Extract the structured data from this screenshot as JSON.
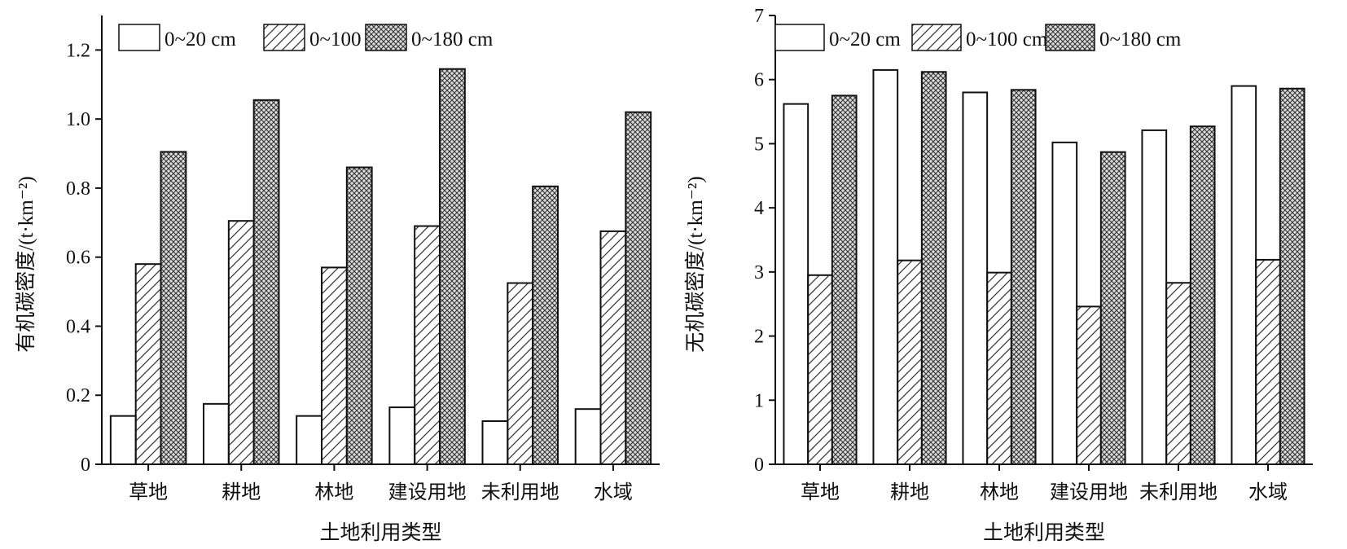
{
  "chart_data": [
    {
      "type": "bar",
      "title": "",
      "xlabel": "土地利用类型",
      "ylabel": "有机碳密度/(t·km⁻²)",
      "ylim": [
        0,
        1.3
      ],
      "yticks": [
        0,
        0.2,
        0.4,
        0.6,
        0.8,
        1.0,
        1.2
      ],
      "ytick_labels": [
        "0",
        "0.2",
        "0.4",
        "0.6",
        "0.8",
        "1.0",
        "1.2"
      ],
      "categories": [
        "草地",
        "耕地",
        "林地",
        "建设用地",
        "未利用地",
        "水域"
      ],
      "legend_position": "top",
      "series": [
        {
          "name": "0~20 cm",
          "pattern": "plain",
          "values": [
            0.14,
            0.175,
            0.14,
            0.165,
            0.125,
            0.16
          ]
        },
        {
          "name": "0~100 cm",
          "pattern": "diagonal",
          "values": [
            0.58,
            0.705,
            0.57,
            0.69,
            0.525,
            0.675
          ]
        },
        {
          "name": "0~180 cm",
          "pattern": "crosshatch",
          "values": [
            0.905,
            1.055,
            0.86,
            1.145,
            0.805,
            1.02
          ]
        }
      ]
    },
    {
      "type": "bar",
      "title": "",
      "xlabel": "土地利用类型",
      "ylabel": "无机碳密度/(t·km⁻²)",
      "ylim": [
        0,
        7
      ],
      "yticks": [
        0,
        1,
        2,
        3,
        4,
        5,
        6,
        7
      ],
      "ytick_labels": [
        "0",
        "1",
        "2",
        "3",
        "4",
        "5",
        "6",
        "7"
      ],
      "categories": [
        "草地",
        "耕地",
        "林地",
        "建设用地",
        "未利用地",
        "水域"
      ],
      "legend_position": "top",
      "series": [
        {
          "name": "0~20 cm",
          "pattern": "plain",
          "values": [
            5.62,
            6.15,
            5.8,
            5.02,
            5.21,
            5.9
          ]
        },
        {
          "name": "0~100 cm",
          "pattern": "diagonal",
          "values": [
            2.95,
            3.18,
            2.99,
            2.46,
            2.83,
            3.19
          ]
        },
        {
          "name": "0~180 cm",
          "pattern": "crosshatch",
          "values": [
            5.75,
            6.12,
            5.84,
            4.87,
            5.27,
            5.86
          ]
        }
      ]
    }
  ]
}
